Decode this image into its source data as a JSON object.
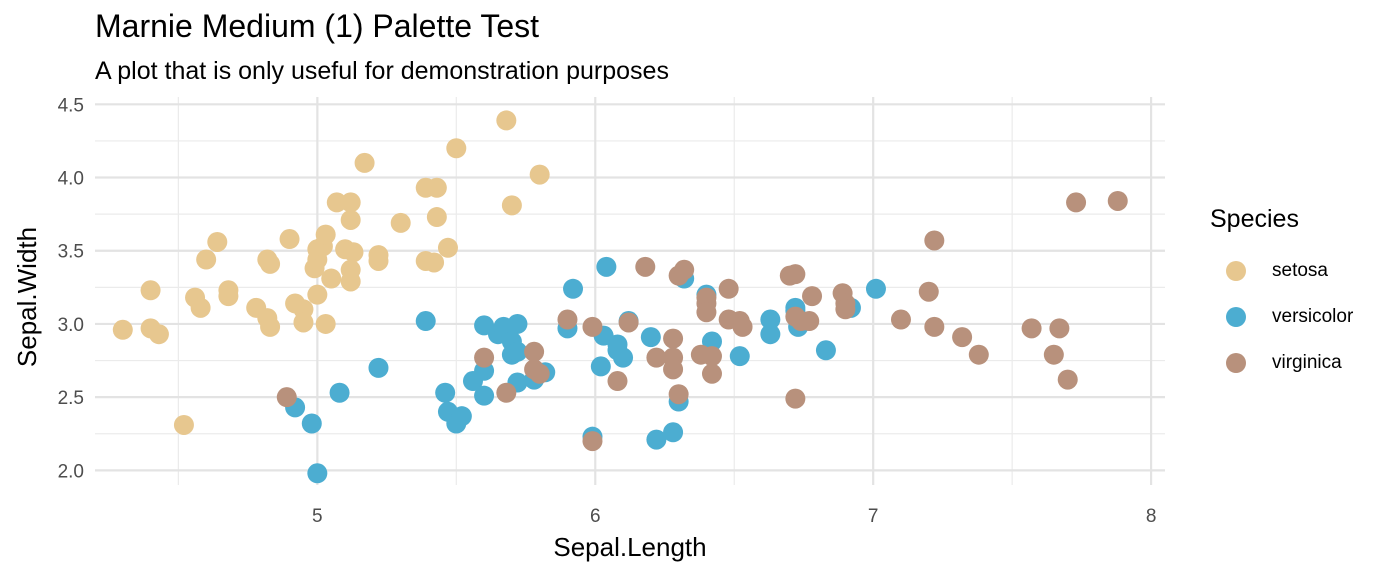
{
  "chart_data": {
    "type": "scatter",
    "title": "Marnie Medium (1) Palette Test",
    "subtitle": "A plot that is only useful for demonstration purposes",
    "xlabel": "Sepal.Length",
    "ylabel": "Sepal.Width",
    "xlim": [
      4.2,
      8.05
    ],
    "ylim": [
      1.9,
      4.55
    ],
    "x_ticks": [
      5,
      6,
      7,
      8
    ],
    "x_tick_labels": [
      "5",
      "6",
      "7",
      "8"
    ],
    "y_ticks": [
      2.0,
      2.5,
      3.0,
      3.5,
      4.0,
      4.5
    ],
    "y_tick_labels": [
      "2.0",
      "2.5",
      "3.0",
      "3.5",
      "4.0",
      "4.5"
    ],
    "grid": true,
    "legend": {
      "title": "Species",
      "position": "right"
    },
    "series": [
      {
        "name": "setosa",
        "color": "#E7C78F",
        "points": [
          [
            4.3,
            2.96
          ],
          [
            4.4,
            2.97
          ],
          [
            4.43,
            2.93
          ],
          [
            4.4,
            3.23
          ],
          [
            4.52,
            2.31
          ],
          [
            4.56,
            3.18
          ],
          [
            4.58,
            3.11
          ],
          [
            4.6,
            3.44
          ],
          [
            4.64,
            3.56
          ],
          [
            4.68,
            3.23
          ],
          [
            4.68,
            3.19
          ],
          [
            4.78,
            3.11
          ],
          [
            4.82,
            3.44
          ],
          [
            4.83,
            3.41
          ],
          [
            4.82,
            3.04
          ],
          [
            4.83,
            2.98
          ],
          [
            4.9,
            3.58
          ],
          [
            4.92,
            3.14
          ],
          [
            4.95,
            3.1
          ],
          [
            4.95,
            3.01
          ],
          [
            4.99,
            3.38
          ],
          [
            5.0,
            3.44
          ],
          [
            5.0,
            3.51
          ],
          [
            5.02,
            3.53
          ],
          [
            5.03,
            3.61
          ],
          [
            5.0,
            3.2
          ],
          [
            5.03,
            3.0
          ],
          [
            5.05,
            3.31
          ],
          [
            5.07,
            3.83
          ],
          [
            5.12,
            3.83
          ],
          [
            5.1,
            3.51
          ],
          [
            5.12,
            3.71
          ],
          [
            5.13,
            3.49
          ],
          [
            5.12,
            3.37
          ],
          [
            5.12,
            3.29
          ],
          [
            5.17,
            4.1
          ],
          [
            5.22,
            3.43
          ],
          [
            5.22,
            3.47
          ],
          [
            5.3,
            3.69
          ],
          [
            5.39,
            3.93
          ],
          [
            5.39,
            3.43
          ],
          [
            5.42,
            3.42
          ],
          [
            5.43,
            3.93
          ],
          [
            5.43,
            3.73
          ],
          [
            5.47,
            3.52
          ],
          [
            5.5,
            4.2
          ],
          [
            5.68,
            4.39
          ],
          [
            5.7,
            3.81
          ],
          [
            5.8,
            4.02
          ]
        ]
      },
      {
        "name": "versicolor",
        "color": "#4CADD1",
        "points": [
          [
            4.92,
            2.43
          ],
          [
            4.98,
            2.32
          ],
          [
            5.0,
            1.98
          ],
          [
            5.08,
            2.53
          ],
          [
            5.22,
            2.7
          ],
          [
            5.39,
            3.02
          ],
          [
            5.46,
            2.53
          ],
          [
            5.47,
            2.4
          ],
          [
            5.5,
            2.32
          ],
          [
            5.52,
            2.37
          ],
          [
            5.56,
            2.61
          ],
          [
            5.6,
            2.51
          ],
          [
            5.6,
            2.68
          ],
          [
            5.6,
            2.99
          ],
          [
            5.65,
            2.93
          ],
          [
            5.67,
            2.98
          ],
          [
            5.7,
            2.88
          ],
          [
            5.7,
            2.79
          ],
          [
            5.72,
            2.6
          ],
          [
            5.72,
            2.81
          ],
          [
            5.72,
            3.0
          ],
          [
            5.78,
            2.62
          ],
          [
            5.82,
            2.67
          ],
          [
            5.9,
            2.97
          ],
          [
            5.92,
            3.24
          ],
          [
            5.99,
            2.23
          ],
          [
            6.02,
            2.71
          ],
          [
            6.03,
            2.92
          ],
          [
            6.04,
            3.39
          ],
          [
            6.08,
            2.82
          ],
          [
            6.08,
            2.86
          ],
          [
            6.1,
            2.77
          ],
          [
            6.12,
            3.02
          ],
          [
            6.2,
            2.91
          ],
          [
            6.22,
            2.21
          ],
          [
            6.28,
            2.26
          ],
          [
            6.3,
            2.47
          ],
          [
            6.32,
            3.31
          ],
          [
            6.4,
            3.2
          ],
          [
            6.42,
            2.88
          ],
          [
            6.52,
            2.78
          ],
          [
            6.63,
            2.93
          ],
          [
            6.63,
            3.03
          ],
          [
            6.72,
            3.09
          ],
          [
            6.72,
            3.11
          ],
          [
            6.73,
            2.98
          ],
          [
            6.83,
            2.82
          ],
          [
            6.92,
            3.11
          ],
          [
            7.01,
            3.24
          ]
        ]
      },
      {
        "name": "virginica",
        "color": "#B8917C",
        "points": [
          [
            4.89,
            2.5
          ],
          [
            5.6,
            2.77
          ],
          [
            5.68,
            2.53
          ],
          [
            5.78,
            2.81
          ],
          [
            5.78,
            2.69
          ],
          [
            5.8,
            2.66
          ],
          [
            5.9,
            3.03
          ],
          [
            5.99,
            2.98
          ],
          [
            5.99,
            2.2
          ],
          [
            6.08,
            2.61
          ],
          [
            6.12,
            3.01
          ],
          [
            6.18,
            3.39
          ],
          [
            6.22,
            2.77
          ],
          [
            6.28,
            2.77
          ],
          [
            6.28,
            2.69
          ],
          [
            6.28,
            2.9
          ],
          [
            6.3,
            3.33
          ],
          [
            6.32,
            3.37
          ],
          [
            6.3,
            2.52
          ],
          [
            6.38,
            2.79
          ],
          [
            6.4,
            3.14
          ],
          [
            6.4,
            3.18
          ],
          [
            6.4,
            3.08
          ],
          [
            6.42,
            2.78
          ],
          [
            6.42,
            2.66
          ],
          [
            6.48,
            3.24
          ],
          [
            6.48,
            3.03
          ],
          [
            6.52,
            3.02
          ],
          [
            6.53,
            2.98
          ],
          [
            6.7,
            3.33
          ],
          [
            6.72,
            3.34
          ],
          [
            6.72,
            3.05
          ],
          [
            6.72,
            2.49
          ],
          [
            6.74,
            3.02
          ],
          [
            6.77,
            3.02
          ],
          [
            6.78,
            3.19
          ],
          [
            6.89,
            3.21
          ],
          [
            6.9,
            3.14
          ],
          [
            6.9,
            3.1
          ],
          [
            7.1,
            3.03
          ],
          [
            7.2,
            3.22
          ],
          [
            7.22,
            3.57
          ],
          [
            7.22,
            2.98
          ],
          [
            7.32,
            2.91
          ],
          [
            7.38,
            2.79
          ],
          [
            7.57,
            2.97
          ],
          [
            7.65,
            2.79
          ],
          [
            7.67,
            2.97
          ],
          [
            7.7,
            2.62
          ],
          [
            7.73,
            3.83
          ],
          [
            7.88,
            3.84
          ]
        ]
      }
    ]
  }
}
